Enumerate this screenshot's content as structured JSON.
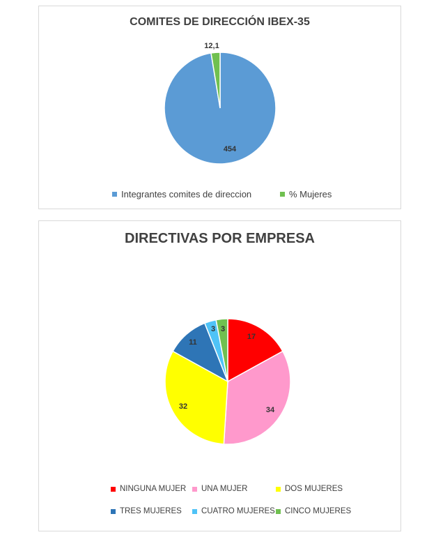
{
  "chart_data": [
    {
      "type": "pie",
      "title": "COMITES DE DIRECCIÓN IBEX-35",
      "categories": [
        "Integrantes comites de direccion",
        "% Mujeres"
      ],
      "values": [
        454,
        12.1
      ],
      "data_labels": [
        "454",
        "12,1"
      ],
      "colors": [
        "#5b9bd5",
        "#70c050"
      ],
      "legend": "bottom"
    },
    {
      "type": "pie",
      "title": "DIRECTIVAS POR EMPRESA",
      "categories": [
        "NINGUNA MUJER",
        "UNA MUJER",
        "DOS MUJERES",
        "TRES MUJERES",
        "CUATRO MUJERES",
        "CINCO MUJERES"
      ],
      "values": [
        17,
        34,
        32,
        11,
        3,
        3
      ],
      "data_labels": [
        "17",
        "34",
        "32",
        "11",
        "3",
        "3"
      ],
      "colors": [
        "#ff0000",
        "#ff99cc",
        "#ffff00",
        "#2e75b6",
        "#4fc3f7",
        "#70c050"
      ],
      "legend": "bottom"
    }
  ]
}
